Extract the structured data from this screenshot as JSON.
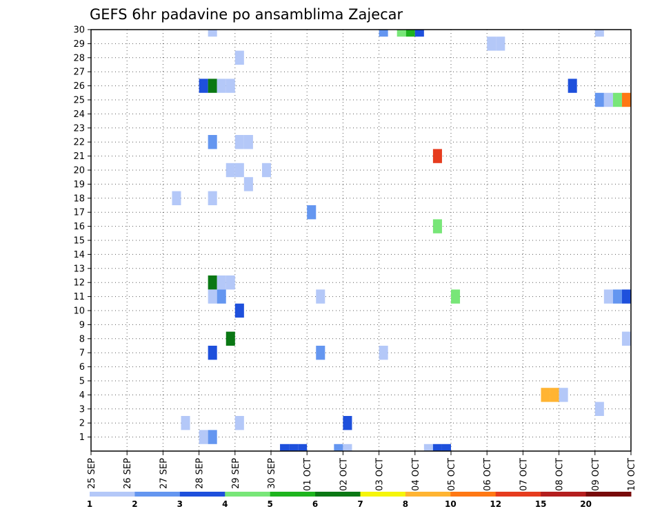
{
  "chart_data": {
    "type": "heatmap",
    "title": "GEFS 6hr padavine po ansamblima Zajecar",
    "xlabel": "",
    "ylabel": "",
    "x_ticks": [
      "25 SEP",
      "26 SEP",
      "27 SEP",
      "28 SEP",
      "29 SEP",
      "30 SEP",
      "01 OCT",
      "02 OCT",
      "03 OCT",
      "04 OCT",
      "05 OCT",
      "06 OCT",
      "07 OCT",
      "08 OCT",
      "09 OCT",
      "10 OCT"
    ],
    "x_range_days": [
      0,
      15
    ],
    "y_ticks": [
      "1",
      "2",
      "3",
      "4",
      "5",
      "6",
      "7",
      "8",
      "9",
      "10",
      "11",
      "12",
      "13",
      "14",
      "15",
      "16",
      "17",
      "18",
      "19",
      "20",
      "21",
      "22",
      "23",
      "24",
      "25",
      "26",
      "27",
      "28",
      "29",
      "30"
    ],
    "y_range": [
      0,
      30
    ],
    "grid": true,
    "colorbar": {
      "labels": [
        "1",
        "2",
        "3",
        "4",
        "5",
        "6",
        "7",
        "8",
        "10",
        "12",
        "15",
        "20"
      ],
      "colors": [
        "#b4c8f8",
        "#6496f0",
        "#1e50dc",
        "#78e678",
        "#1eb41e",
        "#0a7814",
        "#f5f50a",
        "#ffb432",
        "#ff7814",
        "#e63c1e",
        "#b41e1e",
        "#780a0a"
      ]
    },
    "cells": [
      {
        "member": 30,
        "x": 3.25,
        "v": 1
      },
      {
        "member": 30,
        "x": 8.0,
        "v": 2
      },
      {
        "member": 30,
        "x": 8.5,
        "v": 4
      },
      {
        "member": 30,
        "x": 8.75,
        "v": 5
      },
      {
        "member": 30,
        "x": 9.0,
        "v": 3
      },
      {
        "member": 30,
        "x": 14.0,
        "v": 1
      },
      {
        "member": 29,
        "x": 11.0,
        "v": 1
      },
      {
        "member": 29,
        "x": 11.25,
        "v": 1
      },
      {
        "member": 28,
        "x": 4.0,
        "v": 1
      },
      {
        "member": 26,
        "x": 3.0,
        "v": 3
      },
      {
        "member": 26,
        "x": 3.25,
        "v": 6
      },
      {
        "member": 26,
        "x": 3.5,
        "v": 1
      },
      {
        "member": 26,
        "x": 3.75,
        "v": 1
      },
      {
        "member": 26,
        "x": 13.25,
        "v": 3
      },
      {
        "member": 25,
        "x": 14.0,
        "v": 2
      },
      {
        "member": 25,
        "x": 14.25,
        "v": 1
      },
      {
        "member": 25,
        "x": 14.5,
        "v": 4
      },
      {
        "member": 25,
        "x": 14.75,
        "v": 9
      },
      {
        "member": 22,
        "x": 3.25,
        "v": 2
      },
      {
        "member": 22,
        "x": 4.0,
        "v": 1
      },
      {
        "member": 22,
        "x": 4.25,
        "v": 1
      },
      {
        "member": 21,
        "x": 9.5,
        "v": 10
      },
      {
        "member": 20,
        "x": 3.75,
        "v": 1
      },
      {
        "member": 20,
        "x": 4.0,
        "v": 1
      },
      {
        "member": 20,
        "x": 4.75,
        "v": 1
      },
      {
        "member": 19,
        "x": 4.25,
        "v": 1
      },
      {
        "member": 18,
        "x": 2.25,
        "v": 1
      },
      {
        "member": 18,
        "x": 3.25,
        "v": 1
      },
      {
        "member": 17,
        "x": 6.0,
        "v": 2
      },
      {
        "member": 16,
        "x": 9.5,
        "v": 4
      },
      {
        "member": 12,
        "x": 3.25,
        "v": 6
      },
      {
        "member": 12,
        "x": 3.5,
        "v": 1
      },
      {
        "member": 12,
        "x": 3.75,
        "v": 1
      },
      {
        "member": 11,
        "x": 3.25,
        "v": 1
      },
      {
        "member": 11,
        "x": 3.5,
        "v": 2
      },
      {
        "member": 11,
        "x": 6.25,
        "v": 1
      },
      {
        "member": 11,
        "x": 10.0,
        "v": 4
      },
      {
        "member": 11,
        "x": 14.25,
        "v": 1
      },
      {
        "member": 11,
        "x": 14.5,
        "v": 2
      },
      {
        "member": 11,
        "x": 14.75,
        "v": 3
      },
      {
        "member": 10,
        "x": 4.0,
        "v": 3
      },
      {
        "member": 8,
        "x": 3.75,
        "v": 6
      },
      {
        "member": 8,
        "x": 14.75,
        "v": 1
      },
      {
        "member": 7,
        "x": 3.25,
        "v": 3
      },
      {
        "member": 7,
        "x": 6.25,
        "v": 2
      },
      {
        "member": 7,
        "x": 8.0,
        "v": 1
      },
      {
        "member": 4,
        "x": 12.5,
        "v": 8
      },
      {
        "member": 4,
        "x": 12.75,
        "v": 8
      },
      {
        "member": 4,
        "x": 13.0,
        "v": 1
      },
      {
        "member": 3,
        "x": 14.0,
        "v": 1
      },
      {
        "member": 2,
        "x": 2.5,
        "v": 1
      },
      {
        "member": 2,
        "x": 4.0,
        "v": 1
      },
      {
        "member": 2,
        "x": 7.0,
        "v": 3
      },
      {
        "member": 1,
        "x": 3.0,
        "v": 1
      },
      {
        "member": 1,
        "x": 3.25,
        "v": 2
      },
      {
        "member": 0,
        "x": 5.25,
        "v": 3
      },
      {
        "member": 0,
        "x": 5.5,
        "v": 3
      },
      {
        "member": 0,
        "x": 5.75,
        "v": 3
      },
      {
        "member": 0,
        "x": 6.75,
        "v": 2
      },
      {
        "member": 0,
        "x": 7.0,
        "v": 1
      },
      {
        "member": 0,
        "x": 9.25,
        "v": 1
      },
      {
        "member": 0,
        "x": 9.5,
        "v": 3
      },
      {
        "member": 0,
        "x": 9.75,
        "v": 3
      }
    ]
  }
}
